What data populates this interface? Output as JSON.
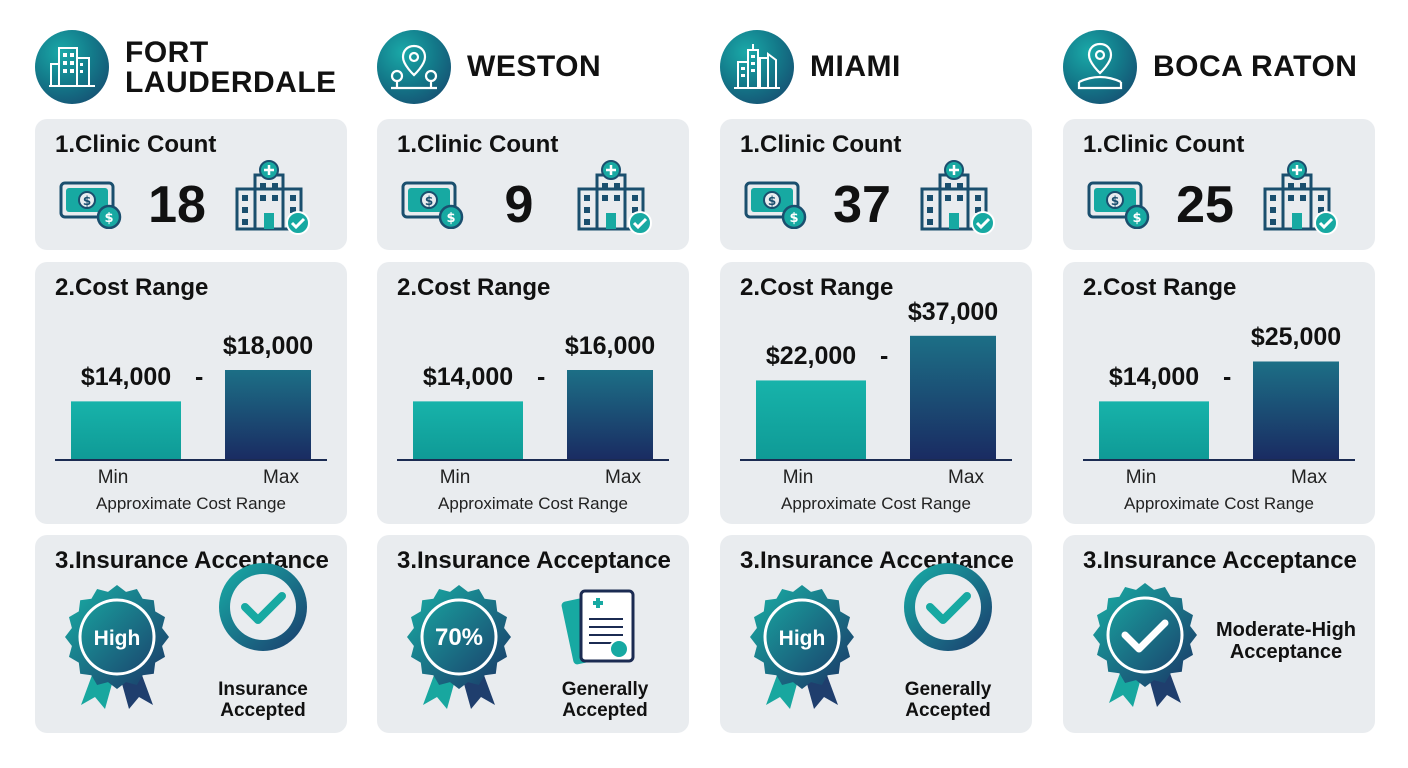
{
  "colors": {
    "teal": "#15a8a2",
    "navy": "#1b2f66",
    "panel": "#e9ecef",
    "text": "#111111"
  },
  "section_titles": {
    "clinic": "1.Clinic Count",
    "cost": "2.Cost Range",
    "insurance": "3.Insurance Acceptance"
  },
  "axis": {
    "min_label": "Min",
    "max_label": "Max",
    "caption": "Approximate Cost Range"
  },
  "cities": [
    {
      "name": "FORT LAUDERDALE",
      "icon": "city-buildings-icon",
      "clinic_count": "18",
      "cost_min": "$14,000",
      "cost_max": "$18,000",
      "insurance_badge": "High",
      "insurance_icon": "checkmark-circle-icon",
      "insurance_label": "Insurance Accepted"
    },
    {
      "name": "WESTON",
      "icon": "map-pin-trees-icon",
      "clinic_count": "9",
      "cost_min": "$14,000",
      "cost_max": "$16,000",
      "insurance_badge": "70%",
      "insurance_icon": "medical-document-icon",
      "insurance_label": "Generally Accepted"
    },
    {
      "name": "MIAMI",
      "icon": "skyline-icon",
      "clinic_count": "37",
      "cost_min": "$22,000",
      "cost_max": "$37,000",
      "insurance_badge": "High",
      "insurance_icon": "checkmark-circle-icon",
      "insurance_label": "Generally Accepted"
    },
    {
      "name": "BOCA RATON",
      "icon": "map-pin-icon",
      "clinic_count": "25",
      "cost_min": "$14,000",
      "cost_max": "$25,000",
      "insurance_badge": "",
      "insurance_icon": "checkmark-badge-icon",
      "insurance_label": "Moderate-High Acceptance"
    }
  ],
  "chart_data": {
    "type": "bar",
    "categories": [
      "Min",
      "Max"
    ],
    "title": "2.Cost Range",
    "xlabel": "Approximate Cost Range",
    "series": [
      {
        "name": "FORT LAUDERDALE",
        "values": [
          14000,
          18000
        ]
      },
      {
        "name": "WESTON",
        "values": [
          14000,
          16000
        ]
      },
      {
        "name": "MIAMI",
        "values": [
          22000,
          37000
        ]
      },
      {
        "name": "BOCA RATON",
        "values": [
          14000,
          25000
        ]
      }
    ]
  }
}
